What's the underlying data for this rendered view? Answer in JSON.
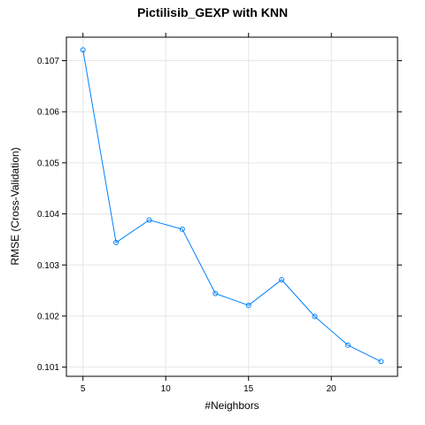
{
  "chart_data": {
    "type": "line",
    "title": "Pictilisib_GEXP with KNN",
    "xlabel": "#Neighbors",
    "ylabel": "RMSE (Cross-Validation)",
    "x": [
      5,
      7,
      9,
      11,
      13,
      15,
      17,
      19,
      21,
      23
    ],
    "series": [
      {
        "values": [
          0.10721,
          0.10344,
          0.10388,
          0.1037,
          0.10244,
          0.10221,
          0.10271,
          0.10199,
          0.10143,
          0.10111
        ]
      }
    ],
    "xlim": [
      4.0,
      24.0
    ],
    "ylim": [
      0.10082,
      0.10746
    ],
    "xticks": [
      5,
      10,
      15,
      20
    ],
    "xtick_labels": [
      "5",
      "10",
      "15",
      "20"
    ],
    "yticks": [
      0.101,
      0.102,
      0.103,
      0.104,
      0.105,
      0.106,
      0.107
    ],
    "ytick_labels": [
      "0.101",
      "0.102",
      "0.103",
      "0.104",
      "0.105",
      "0.106",
      "0.107"
    ],
    "grid": true,
    "colors": {
      "series": "#0080ff",
      "grid": "#e6e6e6",
      "frame": "#000000"
    }
  }
}
